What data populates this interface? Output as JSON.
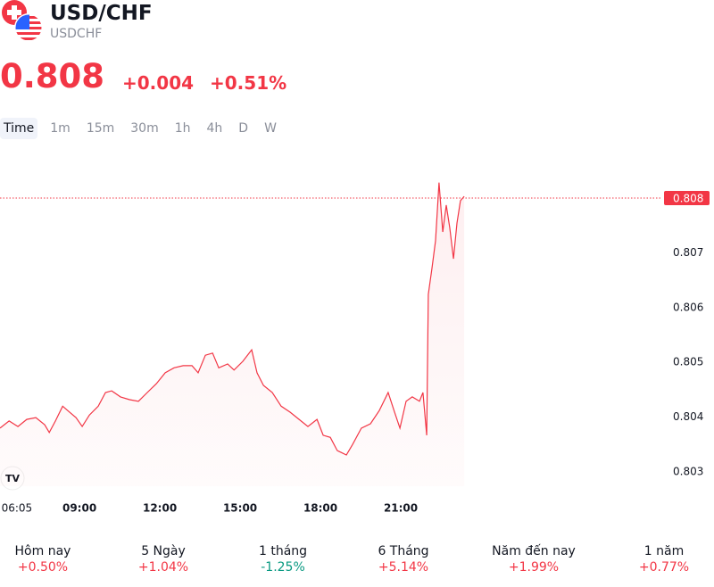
{
  "header": {
    "title": "USD/CHF",
    "symbol": "USDCHF",
    "price": "0.808",
    "change": "+0.004",
    "change_percent": "+0.51%"
  },
  "tabs": [
    "Time",
    "1m",
    "15m",
    "30m",
    "1h",
    "4h",
    "D",
    "W"
  ],
  "chart_data": {
    "type": "line",
    "color": "#f23645",
    "x": [
      6.03,
      6.37,
      6.7,
      7.03,
      7.37,
      7.7,
      7.87,
      8.1,
      8.37,
      8.63,
      8.87,
      9.1,
      9.37,
      9.7,
      9.97,
      10.2,
      10.53,
      10.87,
      11.2,
      11.53,
      11.87,
      12.2,
      12.53,
      12.87,
      13.2,
      13.43,
      13.7,
      13.97,
      14.2,
      14.53,
      14.77,
      15.1,
      15.43,
      15.63,
      15.87,
      16.2,
      16.53,
      16.87,
      17.2,
      17.53,
      17.87,
      18.1,
      18.37,
      18.63,
      18.97,
      19.2,
      19.53,
      19.87,
      20.2,
      20.53,
      20.77,
      20.97,
      21.2,
      21.43,
      21.7,
      21.83,
      21.97,
      22.03,
      22.17,
      22.3,
      22.43,
      22.57,
      22.7,
      22.83,
      22.97,
      23.1,
      23.23,
      23.37
    ],
    "values": [
      0.8038,
      0.80393,
      0.80383,
      0.80396,
      0.80399,
      0.80386,
      0.80372,
      0.80393,
      0.8042,
      0.80409,
      0.80399,
      0.80383,
      0.80404,
      0.8042,
      0.80445,
      0.80448,
      0.80437,
      0.80432,
      0.80429,
      0.80445,
      0.80461,
      0.80481,
      0.8049,
      0.80494,
      0.80494,
      0.80481,
      0.80513,
      0.80517,
      0.8049,
      0.80497,
      0.80486,
      0.80502,
      0.80523,
      0.80481,
      0.80458,
      0.80445,
      0.8042,
      0.80409,
      0.80396,
      0.80383,
      0.80396,
      0.80367,
      0.80363,
      0.80339,
      0.80331,
      0.8035,
      0.8038,
      0.80388,
      0.80412,
      0.80445,
      0.80409,
      0.8038,
      0.80429,
      0.80437,
      0.80429,
      0.80445,
      0.80367,
      0.80624,
      0.80673,
      0.80722,
      0.80828,
      0.80738,
      0.80787,
      0.80746,
      0.80689,
      0.80754,
      0.80795,
      0.80803
    ],
    "xlim": [
      6.03,
      30.7
    ],
    "xticks": [
      {
        "value": 6.0833,
        "label": "06:05"
      },
      {
        "value": 9,
        "label": "09:00"
      },
      {
        "value": 12,
        "label": "12:00"
      },
      {
        "value": 15,
        "label": "15:00"
      },
      {
        "value": 18,
        "label": "18:00"
      },
      {
        "value": 21,
        "label": "21:00"
      }
    ],
    "ylim": [
      0.80274,
      0.80852
    ],
    "yticks": [
      0.803,
      0.804,
      0.805,
      0.806,
      0.807
    ],
    "price_line": 0.808
  },
  "performance": [
    {
      "label": "Hôm nay",
      "value": "+0.50%"
    },
    {
      "label": "5 Ngày",
      "value": "+1.04%"
    },
    {
      "label": "1 tháng",
      "value": "-1.25%"
    },
    {
      "label": "6 Tháng",
      "value": "+5.14%"
    },
    {
      "label": "Năm đến nay",
      "value": "+1.99%"
    },
    {
      "label": "1 năm",
      "value": "+0.77%"
    }
  ]
}
